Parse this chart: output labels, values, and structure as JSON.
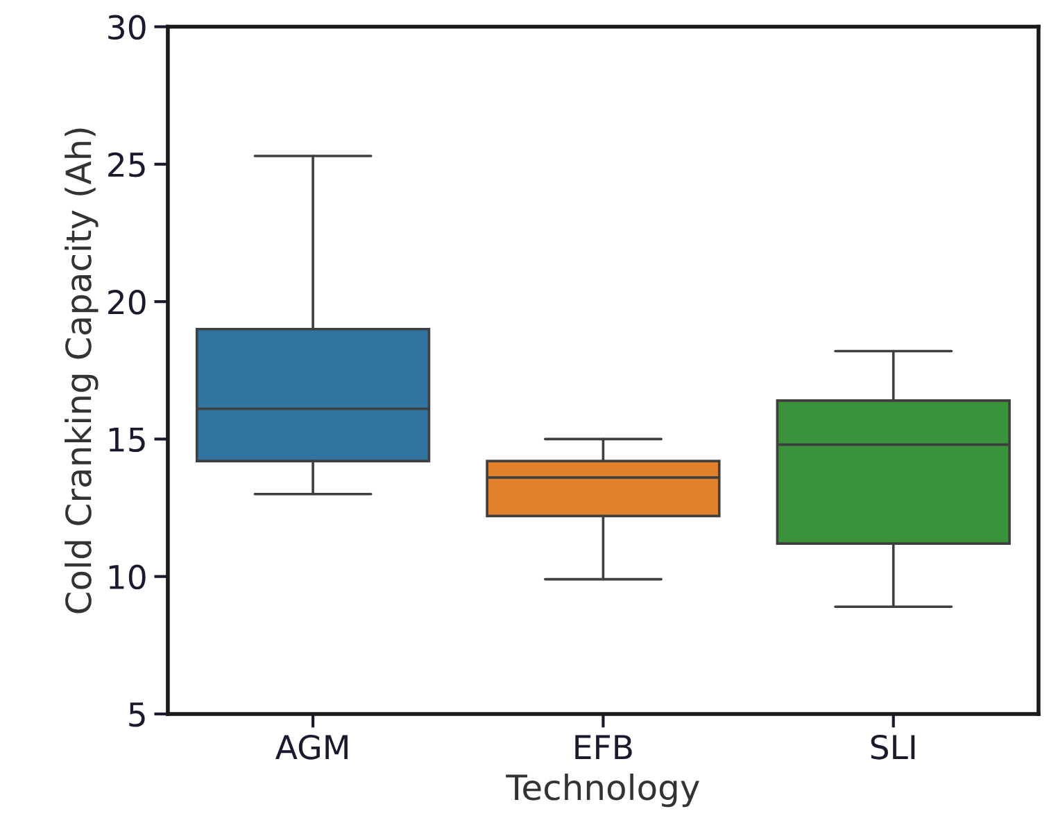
{
  "chart_data": {
    "type": "box",
    "xlabel": "Technology",
    "ylabel": "Cold Cranking Capacity (Ah)",
    "categories": [
      "AGM",
      "EFB",
      "SLI"
    ],
    "colors": [
      "#3274a1",
      "#e1812c",
      "#3a923a"
    ],
    "boxes": [
      {
        "low": 13.0,
        "q1": 14.2,
        "median": 16.1,
        "q3": 19.0,
        "high": 25.3
      },
      {
        "low": 9.9,
        "q1": 12.2,
        "median": 13.6,
        "q3": 14.2,
        "high": 15.0
      },
      {
        "low": 8.9,
        "q1": 11.2,
        "median": 14.8,
        "q3": 16.4,
        "high": 18.2
      }
    ],
    "ylim": [
      5,
      30
    ],
    "yticks": [
      5,
      10,
      15,
      20,
      25,
      30
    ],
    "grid": false,
    "legend": false
  }
}
